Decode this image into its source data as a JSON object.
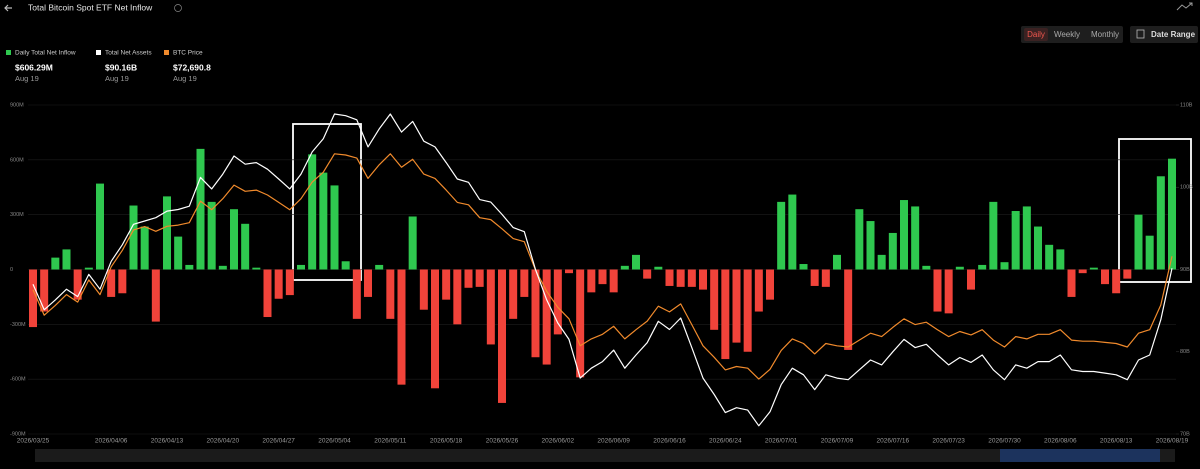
{
  "header": {
    "title": "Total Bitcoin Spot ETF Net Inflow",
    "tabs": [
      "Daily",
      "Weekly",
      "Monthly"
    ],
    "active_tab": 0,
    "date_range": "Date Range"
  },
  "chart_data": {
    "type": "bar-line",
    "categories": [
      "2026/03/25",
      null,
      null,
      null,
      null,
      null,
      null,
      "2026/04/06",
      null,
      null,
      null,
      null,
      "2026/04/13",
      null,
      null,
      null,
      null,
      "2026/04/20",
      null,
      null,
      null,
      null,
      "2026/04/27",
      null,
      null,
      null,
      null,
      "2026/05/04",
      null,
      null,
      null,
      null,
      "2026/05/11",
      null,
      null,
      null,
      null,
      "2026/05/18",
      null,
      null,
      null,
      null,
      "2026/05/26",
      null,
      null,
      null,
      null,
      "2026/06/02",
      null,
      null,
      null,
      null,
      "2026/06/09",
      null,
      null,
      null,
      null,
      "2026/06/16",
      null,
      null,
      null,
      null,
      "2026/06/24",
      null,
      null,
      null,
      null,
      "2026/07/01",
      null,
      null,
      null,
      null,
      "2026/07/09",
      null,
      null,
      null,
      null,
      "2026/07/16",
      null,
      null,
      null,
      null,
      "2026/07/23",
      null,
      null,
      null,
      null,
      "2026/07/30",
      null,
      null,
      null,
      null,
      "2026/08/06",
      null,
      null,
      null,
      null,
      "2026/08/13",
      null,
      null,
      null,
      null,
      "2026/08/19"
    ],
    "series": [
      {
        "name": "Daily Total Net Inflow",
        "type": "bar",
        "color": "#2fc84f",
        "negative_color": "#f1433a",
        "latest": {
          "label": "$606.29M",
          "date": "Aug 19"
        },
        "values": [
          -315,
          -230,
          65,
          110,
          -165,
          10,
          470,
          -150,
          -130,
          350,
          235,
          -285,
          400,
          180,
          25,
          660,
          370,
          20,
          330,
          250,
          10,
          -260,
          -160,
          -140,
          25,
          630,
          530,
          460,
          45,
          -270,
          -150,
          25,
          -270,
          -630,
          290,
          -220,
          -650,
          -165,
          -300,
          -100,
          -95,
          -410,
          -730,
          -270,
          -150,
          -480,
          -520,
          -355,
          -20,
          -590,
          -125,
          -80,
          -125,
          20,
          80,
          -50,
          15,
          -90,
          -95,
          -95,
          -110,
          -330,
          -490,
          -400,
          -450,
          -230,
          -165,
          370,
          410,
          30,
          -90,
          -95,
          80,
          -440,
          330,
          265,
          80,
          200,
          380,
          345,
          20,
          -230,
          -240,
          15,
          -110,
          25,
          370,
          40,
          320,
          345,
          235,
          135,
          110,
          -150,
          -20,
          10,
          -80,
          -130,
          -50,
          300,
          185,
          510,
          606.29
        ]
      },
      {
        "name": "Total Net Assets",
        "type": "line",
        "axis": "y2",
        "color": "#ffffff",
        "latest": {
          "label": "$90.16B",
          "date": "Aug 19"
        },
        "values": [
          88.2,
          85.1,
          86.3,
          87.6,
          86.7,
          89.4,
          87.6,
          91.0,
          93.0,
          95.5,
          95.9,
          96.3,
          97.1,
          97.3,
          97.7,
          101.2,
          99.8,
          101.6,
          103.8,
          102.8,
          103.0,
          102.2,
          101.0,
          99.8,
          101.6,
          104.3,
          105.9,
          108.9,
          108.7,
          108.2,
          104.9,
          107.1,
          108.9,
          106.7,
          108.0,
          105.6,
          104.9,
          103.0,
          101.0,
          100.6,
          98.5,
          98.2,
          96.7,
          95.1,
          94.6,
          90.0,
          86.3,
          83.5,
          81.5,
          76.8,
          78.0,
          78.8,
          80.2,
          78.0,
          79.6,
          81.1,
          83.7,
          82.7,
          84.1,
          80.5,
          76.8,
          74.8,
          72.6,
          73.2,
          72.9,
          71.0,
          72.7,
          76.0,
          78.0,
          77.2,
          75.4,
          77.2,
          76.8,
          76.6,
          77.8,
          79.0,
          78.4,
          80.0,
          81.5,
          80.5,
          80.9,
          79.6,
          78.4,
          79.3,
          78.7,
          79.6,
          77.8,
          76.6,
          78.4,
          78.0,
          78.8,
          78.8,
          79.6,
          77.8,
          77.6,
          77.6,
          77.4,
          77.2,
          76.6,
          79.0,
          79.6,
          83.9,
          90.16
        ]
      },
      {
        "name": "BTC Price",
        "type": "line",
        "axis": "y3",
        "color": "#f08a2c",
        "latest": {
          "label": "$72,690.8",
          "date": "Aug 19"
        },
        "values": [
          68410,
          65170,
          66420,
          67790,
          66840,
          69670,
          67790,
          71350,
          73440,
          76060,
          76480,
          75880,
          76510,
          76670,
          76980,
          79730,
          78630,
          80040,
          81770,
          80980,
          81140,
          80510,
          79570,
          78630,
          80040,
          82160,
          83420,
          85770,
          85620,
          85220,
          82630,
          84360,
          85770,
          84050,
          85070,
          83180,
          82630,
          81140,
          79570,
          79260,
          77610,
          77370,
          76200,
          74940,
          74550,
          70940,
          68220,
          66170,
          64710,
          61260,
          62140,
          62730,
          63750,
          62140,
          63310,
          64410,
          66320,
          65590,
          66610,
          63970,
          61260,
          59790,
          58180,
          58620,
          58400,
          57010,
          58260,
          60670,
          62140,
          61550,
          60230,
          61550,
          61260,
          61110,
          61990,
          62870,
          62430,
          63610,
          64710,
          63970,
          64270,
          63310,
          62430,
          63090,
          62650,
          63310,
          61990,
          61110,
          62430,
          62140,
          62730,
          62730,
          63310,
          61990,
          61850,
          61850,
          61700,
          61550,
          61110,
          62870,
          63310,
          66470,
          72690.8
        ]
      }
    ],
    "ylim": [
      -900,
      900
    ],
    "yticks": [
      {
        "value": 900,
        "label": "900M"
      },
      {
        "value": 600,
        "label": "600M"
      },
      {
        "value": 300,
        "label": "300M"
      },
      0,
      {
        "value": -300,
        "label": "-300M"
      },
      {
        "value": -600,
        "label": "-600M"
      },
      {
        "value": -900,
        "label": "-900M"
      }
    ],
    "y2lim": [
      70,
      110
    ],
    "y2ticks": [
      {
        "value": 110,
        "label": "110B"
      },
      {
        "value": 100,
        "label": "100B"
      },
      {
        "value": 90,
        "label": "90B"
      },
      {
        "value": 80,
        "label": "80B"
      },
      {
        "value": 70,
        "label": "70B"
      }
    ],
    "y3lim": [
      50000,
      92000
    ],
    "grid": true
  }
}
